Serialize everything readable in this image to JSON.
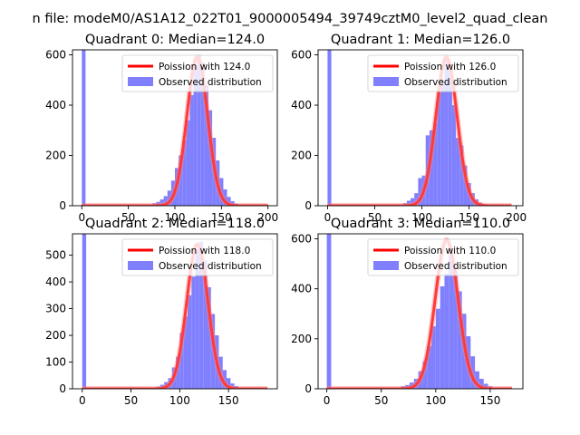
{
  "figure": {
    "suptitle": "n file: modeM0/AS1A12_022T01_9000005494_39749cztM0_level2_quad_clean",
    "colors": {
      "hist": "#8080ff",
      "curve": "#ff0000"
    }
  },
  "chart_data": [
    {
      "type": "bar",
      "title": "Quadrant 0: Median=124.0",
      "xlim": [
        -10,
        210
      ],
      "ylim": [
        0,
        620
      ],
      "xticks": [
        0,
        50,
        100,
        150,
        200
      ],
      "yticks": [
        0,
        200,
        400,
        600
      ],
      "legend": {
        "placement": "top-right",
        "entries": [
          "Poission with 124.0",
          "Observed distribution"
        ]
      },
      "bin_width": 4,
      "hist": [
        [
          0,
          620
        ],
        [
          68,
          2
        ],
        [
          72,
          5
        ],
        [
          76,
          10
        ],
        [
          80,
          15
        ],
        [
          84,
          25
        ],
        [
          88,
          38
        ],
        [
          92,
          60
        ],
        [
          96,
          100
        ],
        [
          100,
          150
        ],
        [
          104,
          200
        ],
        [
          108,
          260
        ],
        [
          112,
          340
        ],
        [
          116,
          440
        ],
        [
          120,
          560
        ],
        [
          124,
          600
        ],
        [
          128,
          570
        ],
        [
          132,
          480
        ],
        [
          136,
          380
        ],
        [
          140,
          270
        ],
        [
          144,
          180
        ],
        [
          148,
          110
        ],
        [
          152,
          65
        ],
        [
          156,
          35
        ],
        [
          160,
          18
        ],
        [
          164,
          8
        ],
        [
          168,
          5
        ],
        [
          172,
          2
        ]
      ],
      "poisson": {
        "mu": 124.0,
        "peak": 590,
        "xrange": [
          0,
          200
        ]
      }
    },
    {
      "type": "bar",
      "title": "Quadrant 1: Median=126.0",
      "xlim": [
        -10,
        207
      ],
      "ylim": [
        0,
        620
      ],
      "xticks": [
        0,
        50,
        100,
        150,
        200
      ],
      "yticks": [
        0,
        200,
        400,
        600
      ],
      "legend": {
        "placement": "top-right",
        "entries": [
          "Poission with 126.0",
          "Observed distribution"
        ]
      },
      "bin_width": 4,
      "hist": [
        [
          0,
          620
        ],
        [
          64,
          2
        ],
        [
          72,
          4
        ],
        [
          80,
          10
        ],
        [
          84,
          20
        ],
        [
          88,
          30
        ],
        [
          92,
          50
        ],
        [
          96,
          110
        ],
        [
          100,
          120
        ],
        [
          104,
          280
        ],
        [
          108,
          300
        ],
        [
          112,
          330
        ],
        [
          116,
          450
        ],
        [
          120,
          500
        ],
        [
          124,
          580
        ],
        [
          128,
          540
        ],
        [
          132,
          400
        ],
        [
          136,
          270
        ],
        [
          140,
          240
        ],
        [
          144,
          160
        ],
        [
          148,
          90
        ],
        [
          152,
          50
        ],
        [
          156,
          25
        ],
        [
          160,
          12
        ],
        [
          164,
          6
        ],
        [
          168,
          3
        ],
        [
          172,
          1
        ]
      ],
      "poisson": {
        "mu": 126.0,
        "peak": 590,
        "xrange": [
          0,
          195
        ]
      }
    },
    {
      "type": "bar",
      "title": "Quadrant 2: Median=118.0",
      "xlim": [
        -10,
        200
      ],
      "ylim": [
        0,
        580
      ],
      "xticks": [
        0,
        50,
        100,
        150
      ],
      "yticks": [
        0,
        100,
        200,
        300,
        400,
        500
      ],
      "legend": {
        "placement": "top-right",
        "entries": [
          "Poission with 118.0",
          "Observed distribution"
        ]
      },
      "bin_width": 4,
      "hist": [
        [
          0,
          580
        ],
        [
          64,
          2
        ],
        [
          72,
          4
        ],
        [
          76,
          8
        ],
        [
          80,
          15
        ],
        [
          84,
          25
        ],
        [
          88,
          40
        ],
        [
          92,
          80
        ],
        [
          96,
          120
        ],
        [
          100,
          210
        ],
        [
          104,
          270
        ],
        [
          108,
          350
        ],
        [
          112,
          420
        ],
        [
          116,
          520
        ],
        [
          120,
          550
        ],
        [
          124,
          480
        ],
        [
          128,
          380
        ],
        [
          132,
          280
        ],
        [
          136,
          200
        ],
        [
          140,
          120
        ],
        [
          144,
          70
        ],
        [
          148,
          40
        ],
        [
          152,
          20
        ],
        [
          156,
          10
        ],
        [
          160,
          5
        ],
        [
          164,
          2
        ]
      ],
      "poisson": {
        "mu": 118.0,
        "peak": 540,
        "xrange": [
          0,
          190
        ]
      }
    },
    {
      "type": "bar",
      "title": "Quadrant 3: Median=110.0",
      "xlim": [
        -8,
        180
      ],
      "ylim": [
        0,
        620
      ],
      "xticks": [
        0,
        50,
        100,
        150
      ],
      "yticks": [
        0,
        200,
        400,
        600
      ],
      "legend": {
        "placement": "top-right",
        "entries": [
          "Poission with 110.0",
          "Observed distribution"
        ]
      },
      "bin_width": 4,
      "hist": [
        [
          0,
          620
        ],
        [
          32,
          5
        ],
        [
          56,
          3
        ],
        [
          64,
          5
        ],
        [
          68,
          10
        ],
        [
          72,
          15
        ],
        [
          76,
          25
        ],
        [
          80,
          40
        ],
        [
          84,
          70
        ],
        [
          88,
          110
        ],
        [
          92,
          170
        ],
        [
          96,
          250
        ],
        [
          100,
          320
        ],
        [
          104,
          410
        ],
        [
          108,
          460
        ],
        [
          112,
          560
        ],
        [
          116,
          470
        ],
        [
          120,
          390
        ],
        [
          124,
          300
        ],
        [
          128,
          210
        ],
        [
          132,
          130
        ],
        [
          136,
          70
        ],
        [
          140,
          40
        ],
        [
          144,
          20
        ],
        [
          148,
          10
        ],
        [
          152,
          5
        ],
        [
          156,
          2
        ]
      ],
      "poisson": {
        "mu": 110.0,
        "peak": 595,
        "xrange": [
          0,
          170
        ]
      }
    }
  ]
}
